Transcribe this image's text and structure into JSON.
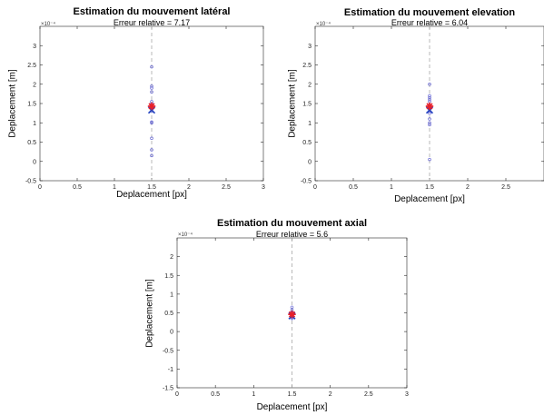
{
  "exponent_label": "×10⁻⁴",
  "colors": {
    "samples": "#6b6bd6",
    "estimate": "#1f3fbf",
    "reference": "#e8202a",
    "reference_line": "#a8a8a8",
    "axes": "#262626"
  },
  "chart_data": [
    {
      "type": "scatter",
      "title": "Estimation du mouvement latéral",
      "subtitle": "Erreur relative = 7.17",
      "xlabel": "Deplacement [px]",
      "ylabel": "Deplacement [m]",
      "xlim": [
        0,
        3
      ],
      "ylim": [
        -0.5,
        3.5
      ],
      "y_exponent": -4,
      "xticks": [
        0,
        0.5,
        1,
        1.5,
        2,
        2.5,
        3
      ],
      "yticks": [
        -0.5,
        0,
        0.5,
        1,
        1.5,
        2,
        2.5,
        3
      ],
      "reference_line_x": 1.5,
      "samples": {
        "x": [
          1.5,
          1.5,
          1.5,
          1.5,
          1.5,
          1.5,
          1.5,
          1.5,
          1.5,
          1.5,
          1.5,
          1.5,
          1.5,
          1.5,
          1.5
        ],
        "y": [
          0.15,
          0.3,
          0.6,
          1.0,
          1.02,
          1.3,
          1.35,
          1.4,
          1.45,
          1.5,
          1.55,
          1.8,
          1.9,
          1.95,
          2.45
        ]
      },
      "estimate": {
        "x": 1.5,
        "y": 1.33
      },
      "reference": {
        "x": 1.5,
        "y": 1.43
      },
      "grid": false
    },
    {
      "type": "scatter",
      "title": "Estimation du mouvement elevation",
      "subtitle": "Erreur relative = 6.04",
      "xlabel": "Deplacement [px]",
      "ylabel": "Deplacement [m]",
      "xlim": [
        0,
        3
      ],
      "ylim": [
        -0.5,
        3.5
      ],
      "y_exponent": -4,
      "xticks": [
        0,
        0.5,
        1,
        1.5,
        2,
        2.5
      ],
      "yticks": [
        -0.5,
        0,
        0.5,
        1,
        1.5,
        2,
        2.5,
        3
      ],
      "reference_line_x": 1.5,
      "samples": {
        "x": [
          1.5,
          1.5,
          1.5,
          1.5,
          1.5,
          1.5,
          1.5,
          1.5,
          1.5,
          1.5,
          1.5,
          1.5,
          1.5,
          1.5
        ],
        "y": [
          0.05,
          0.95,
          1.0,
          1.1,
          1.25,
          1.3,
          1.35,
          1.4,
          1.45,
          1.55,
          1.6,
          1.65,
          1.7,
          2.0
        ]
      },
      "estimate": {
        "x": 1.5,
        "y": 1.33
      },
      "reference": {
        "x": 1.5,
        "y": 1.43
      },
      "grid": false
    },
    {
      "type": "scatter",
      "title": "Estimation du mouvement axial",
      "subtitle": "Erreur relative = 5.6",
      "xlabel": "Deplacement [px]",
      "ylabel": "Deplacement [m]",
      "xlim": [
        0,
        3
      ],
      "ylim": [
        -1.5,
        2.5
      ],
      "y_exponent": -4,
      "xticks": [
        0,
        0.5,
        1,
        1.5,
        2,
        2.5,
        3
      ],
      "yticks": [
        -1.5,
        -1,
        -0.5,
        0,
        0.5,
        1,
        1.5,
        2
      ],
      "reference_line_x": 1.5,
      "samples": {
        "x": [
          1.5,
          1.5,
          1.5,
          1.5,
          1.5,
          1.5,
          1.5,
          1.5
        ],
        "y": [
          0.35,
          0.38,
          0.42,
          0.45,
          0.5,
          0.52,
          0.58,
          0.65
        ]
      },
      "estimate": {
        "x": 1.5,
        "y": 0.42
      },
      "reference": {
        "x": 1.5,
        "y": 0.46
      },
      "grid": false
    }
  ]
}
